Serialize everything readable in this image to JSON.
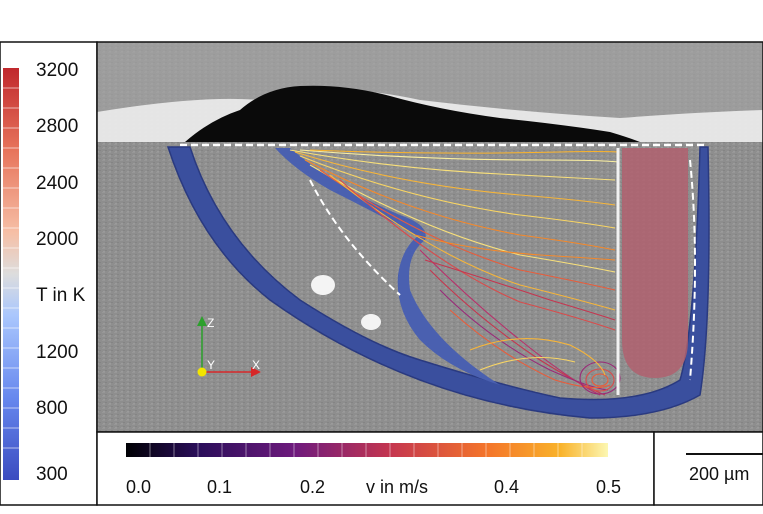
{
  "temperature_colorbar": {
    "title": "T in K",
    "ticks": [
      "3200",
      "2800",
      "2400",
      "2000",
      "1200",
      "800",
      "300"
    ]
  },
  "velocity_colorbar": {
    "title": "v in m/s",
    "ticks": [
      "0.0",
      "0.1",
      "0.2",
      "0.4",
      "0.5"
    ]
  },
  "scale_bar": {
    "label": "200 µm"
  },
  "axes_triad": {
    "x_label": "X",
    "y_label": "Y",
    "z_label": "Z"
  },
  "colors": {
    "melt_pool_boundary": "#3a4f9e",
    "keyhole": "#b0606f",
    "panel_border": "#111111"
  }
}
